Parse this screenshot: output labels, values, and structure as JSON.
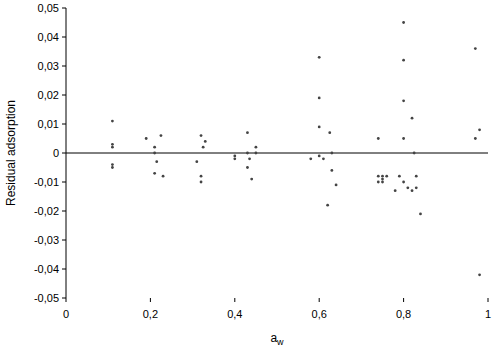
{
  "chart_data": {
    "type": "scatter",
    "xlabel": "aw",
    "ylabel": "Residual adsorption",
    "x": [
      0.11,
      0.11,
      0.11,
      0.11,
      0.11,
      0.19,
      0.21,
      0.21,
      0.215,
      0.21,
      0.225,
      0.23,
      0.32,
      0.33,
      0.325,
      0.31,
      0.32,
      0.32,
      0.4,
      0.4,
      0.43,
      0.43,
      0.435,
      0.43,
      0.44,
      0.45,
      0.45,
      0.58,
      0.6,
      0.6,
      0.6,
      0.6,
      0.61,
      0.62,
      0.625,
      0.63,
      0.63,
      0.64,
      0.74,
      0.74,
      0.74,
      0.75,
      0.75,
      0.75,
      0.76,
      0.78,
      0.79,
      0.8,
      0.8,
      0.8,
      0.8,
      0.8,
      0.81,
      0.82,
      0.82,
      0.825,
      0.83,
      0.83,
      0.84,
      0.97,
      0.97,
      0.98,
      0.98
    ],
    "values": [
      0.011,
      0.003,
      0.002,
      -0.004,
      -0.005,
      0.005,
      0.002,
      0.0,
      -0.003,
      -0.007,
      0.006,
      -0.008,
      0.006,
      0.004,
      0.002,
      -0.003,
      -0.008,
      -0.01,
      -0.001,
      -0.002,
      0.007,
      0.0,
      -0.002,
      -0.005,
      -0.009,
      0.002,
      0.0,
      -0.002,
      0.033,
      0.019,
      0.009,
      -0.001,
      -0.002,
      -0.018,
      0.007,
      -0.006,
      0.0,
      -0.011,
      0.005,
      -0.008,
      -0.01,
      -0.008,
      -0.009,
      -0.01,
      -0.008,
      -0.013,
      -0.008,
      0.045,
      0.032,
      0.018,
      0.005,
      -0.01,
      -0.012,
      0.012,
      -0.013,
      0.0,
      -0.012,
      -0.008,
      -0.021,
      0.036,
      0.005,
      -0.042,
      0.008
    ],
    "color": "#444444",
    "marker": "circle",
    "xlim": [
      0,
      1
    ],
    "xticks": [
      0,
      {
        "value": 0.2,
        "label": "0,2"
      },
      {
        "value": 0.4,
        "label": "0,4"
      },
      {
        "value": 0.6,
        "label": "0,6"
      },
      {
        "value": 0.8,
        "label": "0,8"
      },
      1
    ],
    "ylim": [
      -0.05,
      0.05
    ],
    "yticks": [
      {
        "value": -0.05,
        "label": "-0,05"
      },
      {
        "value": -0.04,
        "label": "-0,04"
      },
      {
        "value": -0.03,
        "label": "-0,03"
      },
      {
        "value": -0.02,
        "label": "-0,02"
      },
      {
        "value": -0.01,
        "label": "-0,01"
      },
      0,
      {
        "value": 0.01,
        "label": "0,01"
      },
      {
        "value": 0.02,
        "label": "0,02"
      },
      {
        "value": 0.03,
        "label": "0,03"
      },
      {
        "value": 0.04,
        "label": "0,04"
      },
      {
        "value": 0.05,
        "label": "0,05"
      }
    ],
    "grid": false
  }
}
